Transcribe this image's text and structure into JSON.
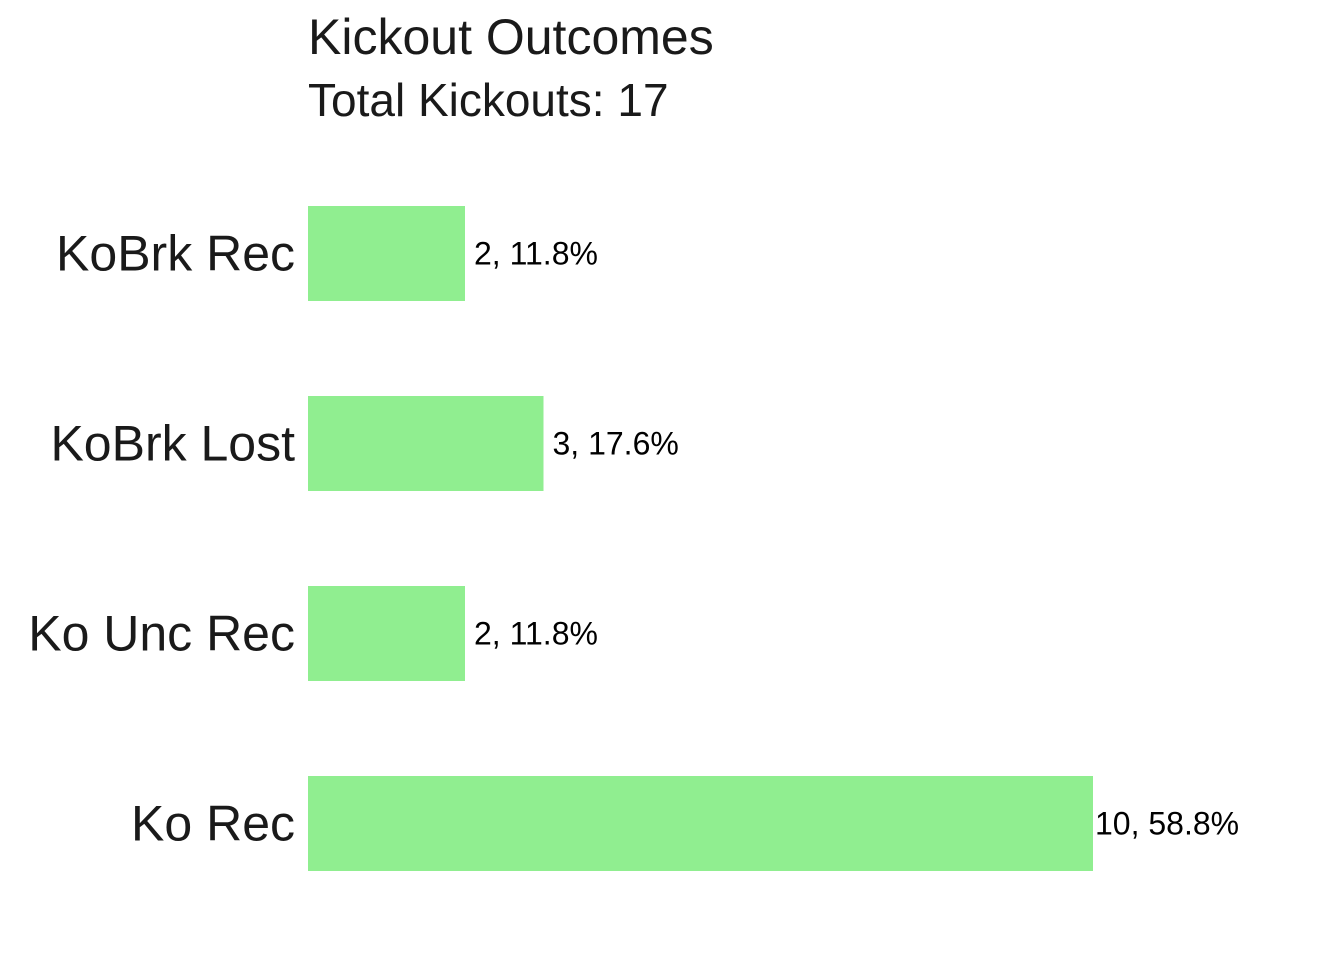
{
  "chart_data": {
    "type": "bar",
    "orientation": "horizontal",
    "title": "Kickout Outcomes",
    "subtitle": "Total Kickouts: 17",
    "categories": [
      "KoBrk Rec",
      "KoBrk Lost",
      "Ko Unc Rec",
      "Ko Rec"
    ],
    "values": [
      2,
      3,
      2,
      10
    ],
    "value_labels": [
      "2, 11.8%",
      "3, 17.6%",
      "2, 11.8%",
      "10, 58.8%"
    ],
    "xlim": [
      0,
      10
    ],
    "grid": false,
    "bar_color": "#90ee90"
  }
}
